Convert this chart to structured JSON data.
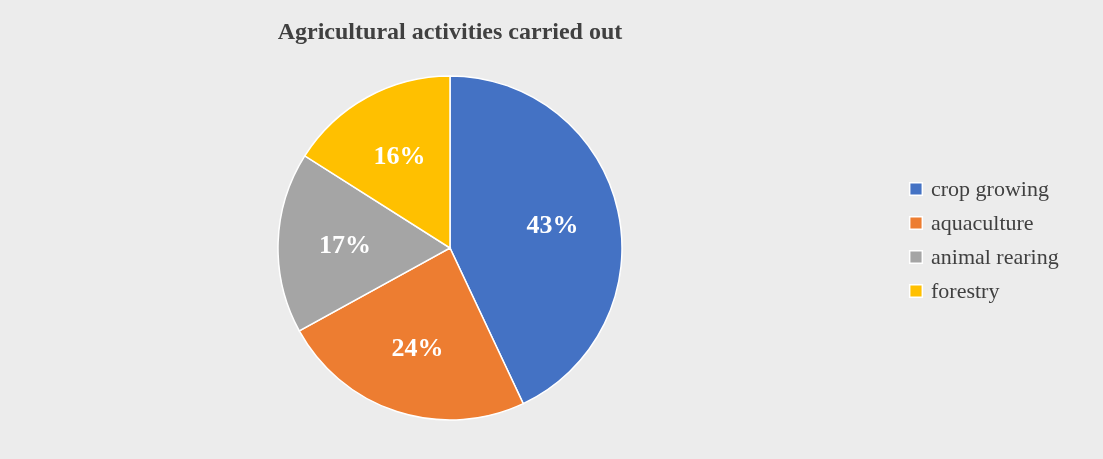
{
  "chart_data": {
    "type": "pie",
    "title": "Agricultural activities carried out",
    "categories": [
      "crop growing",
      "aquaculture",
      "animal rearing",
      "forestry"
    ],
    "values": [
      43,
      24,
      17,
      16
    ],
    "colors": [
      "#4472c4",
      "#ed7d31",
      "#a5a5a5",
      "#ffc000"
    ],
    "value_labels": [
      "43%",
      "24%",
      "17%",
      "16%"
    ],
    "legend": "right"
  }
}
